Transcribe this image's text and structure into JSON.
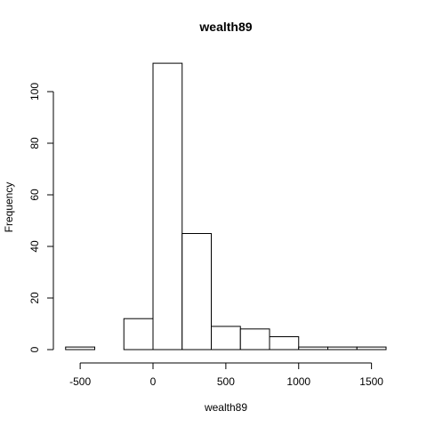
{
  "chart_data": {
    "type": "bar",
    "title": "wealth89",
    "xlabel": "wealth89",
    "ylabel": "Frequency",
    "bins": [
      {
        "start": -600,
        "end": -400,
        "count": 1
      },
      {
        "start": -400,
        "end": -200,
        "count": 0
      },
      {
        "start": -200,
        "end": 0,
        "count": 12
      },
      {
        "start": 0,
        "end": 200,
        "count": 111
      },
      {
        "start": 200,
        "end": 400,
        "count": 45
      },
      {
        "start": 400,
        "end": 600,
        "count": 9
      },
      {
        "start": 600,
        "end": 800,
        "count": 8
      },
      {
        "start": 800,
        "end": 1000,
        "count": 5
      },
      {
        "start": 1000,
        "end": 1200,
        "count": 1
      },
      {
        "start": 1200,
        "end": 1400,
        "count": 1
      },
      {
        "start": 1400,
        "end": 1600,
        "count": 1
      }
    ],
    "xticks": [
      -500,
      0,
      500,
      1000,
      1500
    ],
    "xtick_labels": [
      "-500",
      "0",
      "500",
      "1000",
      "1500"
    ],
    "yticks": [
      0,
      20,
      40,
      60,
      80,
      100
    ],
    "ytick_labels": [
      "0",
      "20",
      "40",
      "60",
      "80",
      "100"
    ],
    "xlim": [
      -600,
      1600
    ],
    "ylim": [
      0,
      111
    ],
    "grid": false
  }
}
